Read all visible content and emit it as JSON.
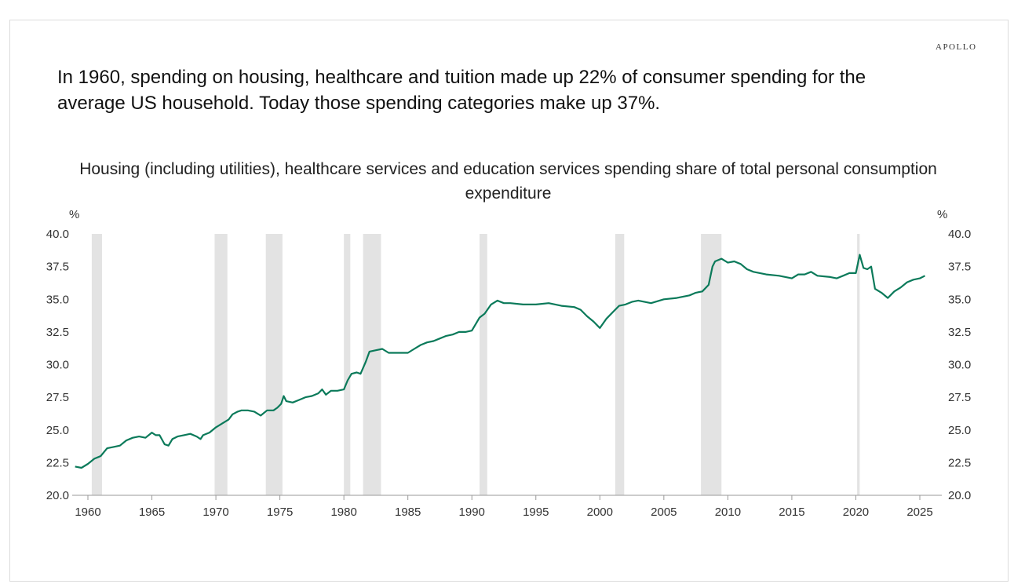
{
  "brand": "APOLLO",
  "headline": "In 1960, spending on housing, healthcare and tuition made up 22% of consumer spending for the average US household. Today those spending categories make up 37%.",
  "chart_data": {
    "type": "line",
    "title": "Housing (including utilities), healthcare services and education services spending share of total personal consumption expenditure",
    "ylabel_left": "%",
    "ylabel_right": "%",
    "xlabel": "",
    "ylim": [
      20,
      40
    ],
    "xlim": [
      1959,
      2026.5
    ],
    "yticks": [
      "20.0",
      "22.5",
      "25.0",
      "27.5",
      "30.0",
      "32.5",
      "35.0",
      "37.5",
      "40.0"
    ],
    "xticks": [
      "1960",
      "1965",
      "1970",
      "1975",
      "1980",
      "1985",
      "1990",
      "1995",
      "2000",
      "2005",
      "2010",
      "2015",
      "2020",
      "2025"
    ],
    "line_color": "#0b7a5a",
    "recession_color": "#e3e3e3",
    "recessions": [
      [
        1960.3,
        1961.1
      ],
      [
        1969.9,
        1970.9
      ],
      [
        1973.9,
        1975.2
      ],
      [
        1980.0,
        1980.5
      ],
      [
        1981.5,
        1982.9
      ],
      [
        1990.6,
        1991.2
      ],
      [
        2001.2,
        2001.9
      ],
      [
        2007.9,
        2009.5
      ],
      [
        2020.1,
        2020.3
      ]
    ],
    "series": [
      {
        "name": "Spending share",
        "x": [
          1959,
          1959.5,
          1960,
          1960.5,
          1961,
          1961.5,
          1962,
          1962.5,
          1963,
          1963.5,
          1964,
          1964.5,
          1965,
          1965.3,
          1965.6,
          1966,
          1966.3,
          1966.6,
          1967,
          1967.5,
          1968,
          1968.5,
          1968.8,
          1969,
          1969.5,
          1970,
          1970.5,
          1971,
          1971.3,
          1971.7,
          1972,
          1972.5,
          1973,
          1973.5,
          1974,
          1974.5,
          1974.8,
          1975.1,
          1975.3,
          1975.5,
          1976,
          1976.5,
          1977,
          1977.5,
          1978,
          1978.3,
          1978.6,
          1979,
          1979.5,
          1980,
          1980.3,
          1980.6,
          1981,
          1981.3,
          1981.7,
          1982,
          1982.5,
          1983,
          1983.5,
          1984,
          1984.5,
          1985,
          1985.5,
          1986,
          1986.5,
          1987,
          1987.5,
          1988,
          1988.5,
          1989,
          1989.5,
          1990,
          1990.3,
          1990.6,
          1991,
          1991.5,
          1992,
          1992.5,
          1993,
          1994,
          1995,
          1996,
          1997,
          1998,
          1998.5,
          1999,
          1999.5,
          2000,
          2000.5,
          2001,
          2001.5,
          2002,
          2002.5,
          2003,
          2004,
          2005,
          2006,
          2007,
          2007.5,
          2008,
          2008.5,
          2008.8,
          2009,
          2009.5,
          2010,
          2010.5,
          2011,
          2011.5,
          2012,
          2013,
          2014,
          2015,
          2015.5,
          2016,
          2016.5,
          2017,
          2018,
          2018.5,
          2019,
          2019.5,
          2020,
          2020.3,
          2020.6,
          2020.9,
          2021.2,
          2021.5,
          2022,
          2022.5,
          2023,
          2023.5,
          2024,
          2024.5,
          2025,
          2025.4
        ],
        "y": [
          22.2,
          22.1,
          22.4,
          22.8,
          23.0,
          23.6,
          23.7,
          23.8,
          24.2,
          24.4,
          24.5,
          24.4,
          24.8,
          24.6,
          24.6,
          23.9,
          23.8,
          24.3,
          24.5,
          24.6,
          24.7,
          24.5,
          24.3,
          24.6,
          24.8,
          25.2,
          25.5,
          25.8,
          26.2,
          26.4,
          26.5,
          26.5,
          26.4,
          26.1,
          26.5,
          26.5,
          26.7,
          27.0,
          27.6,
          27.2,
          27.1,
          27.3,
          27.5,
          27.6,
          27.8,
          28.1,
          27.7,
          28.0,
          28.0,
          28.1,
          28.8,
          29.3,
          29.4,
          29.3,
          30.2,
          31.0,
          31.1,
          31.2,
          30.9,
          30.9,
          30.9,
          30.9,
          31.2,
          31.5,
          31.7,
          31.8,
          32.0,
          32.2,
          32.3,
          32.5,
          32.5,
          32.6,
          33.1,
          33.6,
          33.9,
          34.6,
          34.9,
          34.7,
          34.7,
          34.6,
          34.6,
          34.7,
          34.5,
          34.4,
          34.2,
          33.7,
          33.3,
          32.8,
          33.5,
          34.0,
          34.5,
          34.6,
          34.8,
          34.9,
          34.7,
          35.0,
          35.1,
          35.3,
          35.5,
          35.6,
          36.1,
          37.5,
          37.9,
          38.1,
          37.8,
          37.9,
          37.7,
          37.3,
          37.1,
          36.9,
          36.8,
          36.6,
          36.9,
          36.9,
          37.1,
          36.8,
          36.7,
          36.6,
          36.8,
          37.0,
          37.0,
          38.4,
          37.4,
          37.3,
          37.5,
          35.8,
          35.5,
          35.1,
          35.6,
          35.9,
          36.3,
          36.5,
          36.6,
          36.8
        ]
      }
    ]
  }
}
